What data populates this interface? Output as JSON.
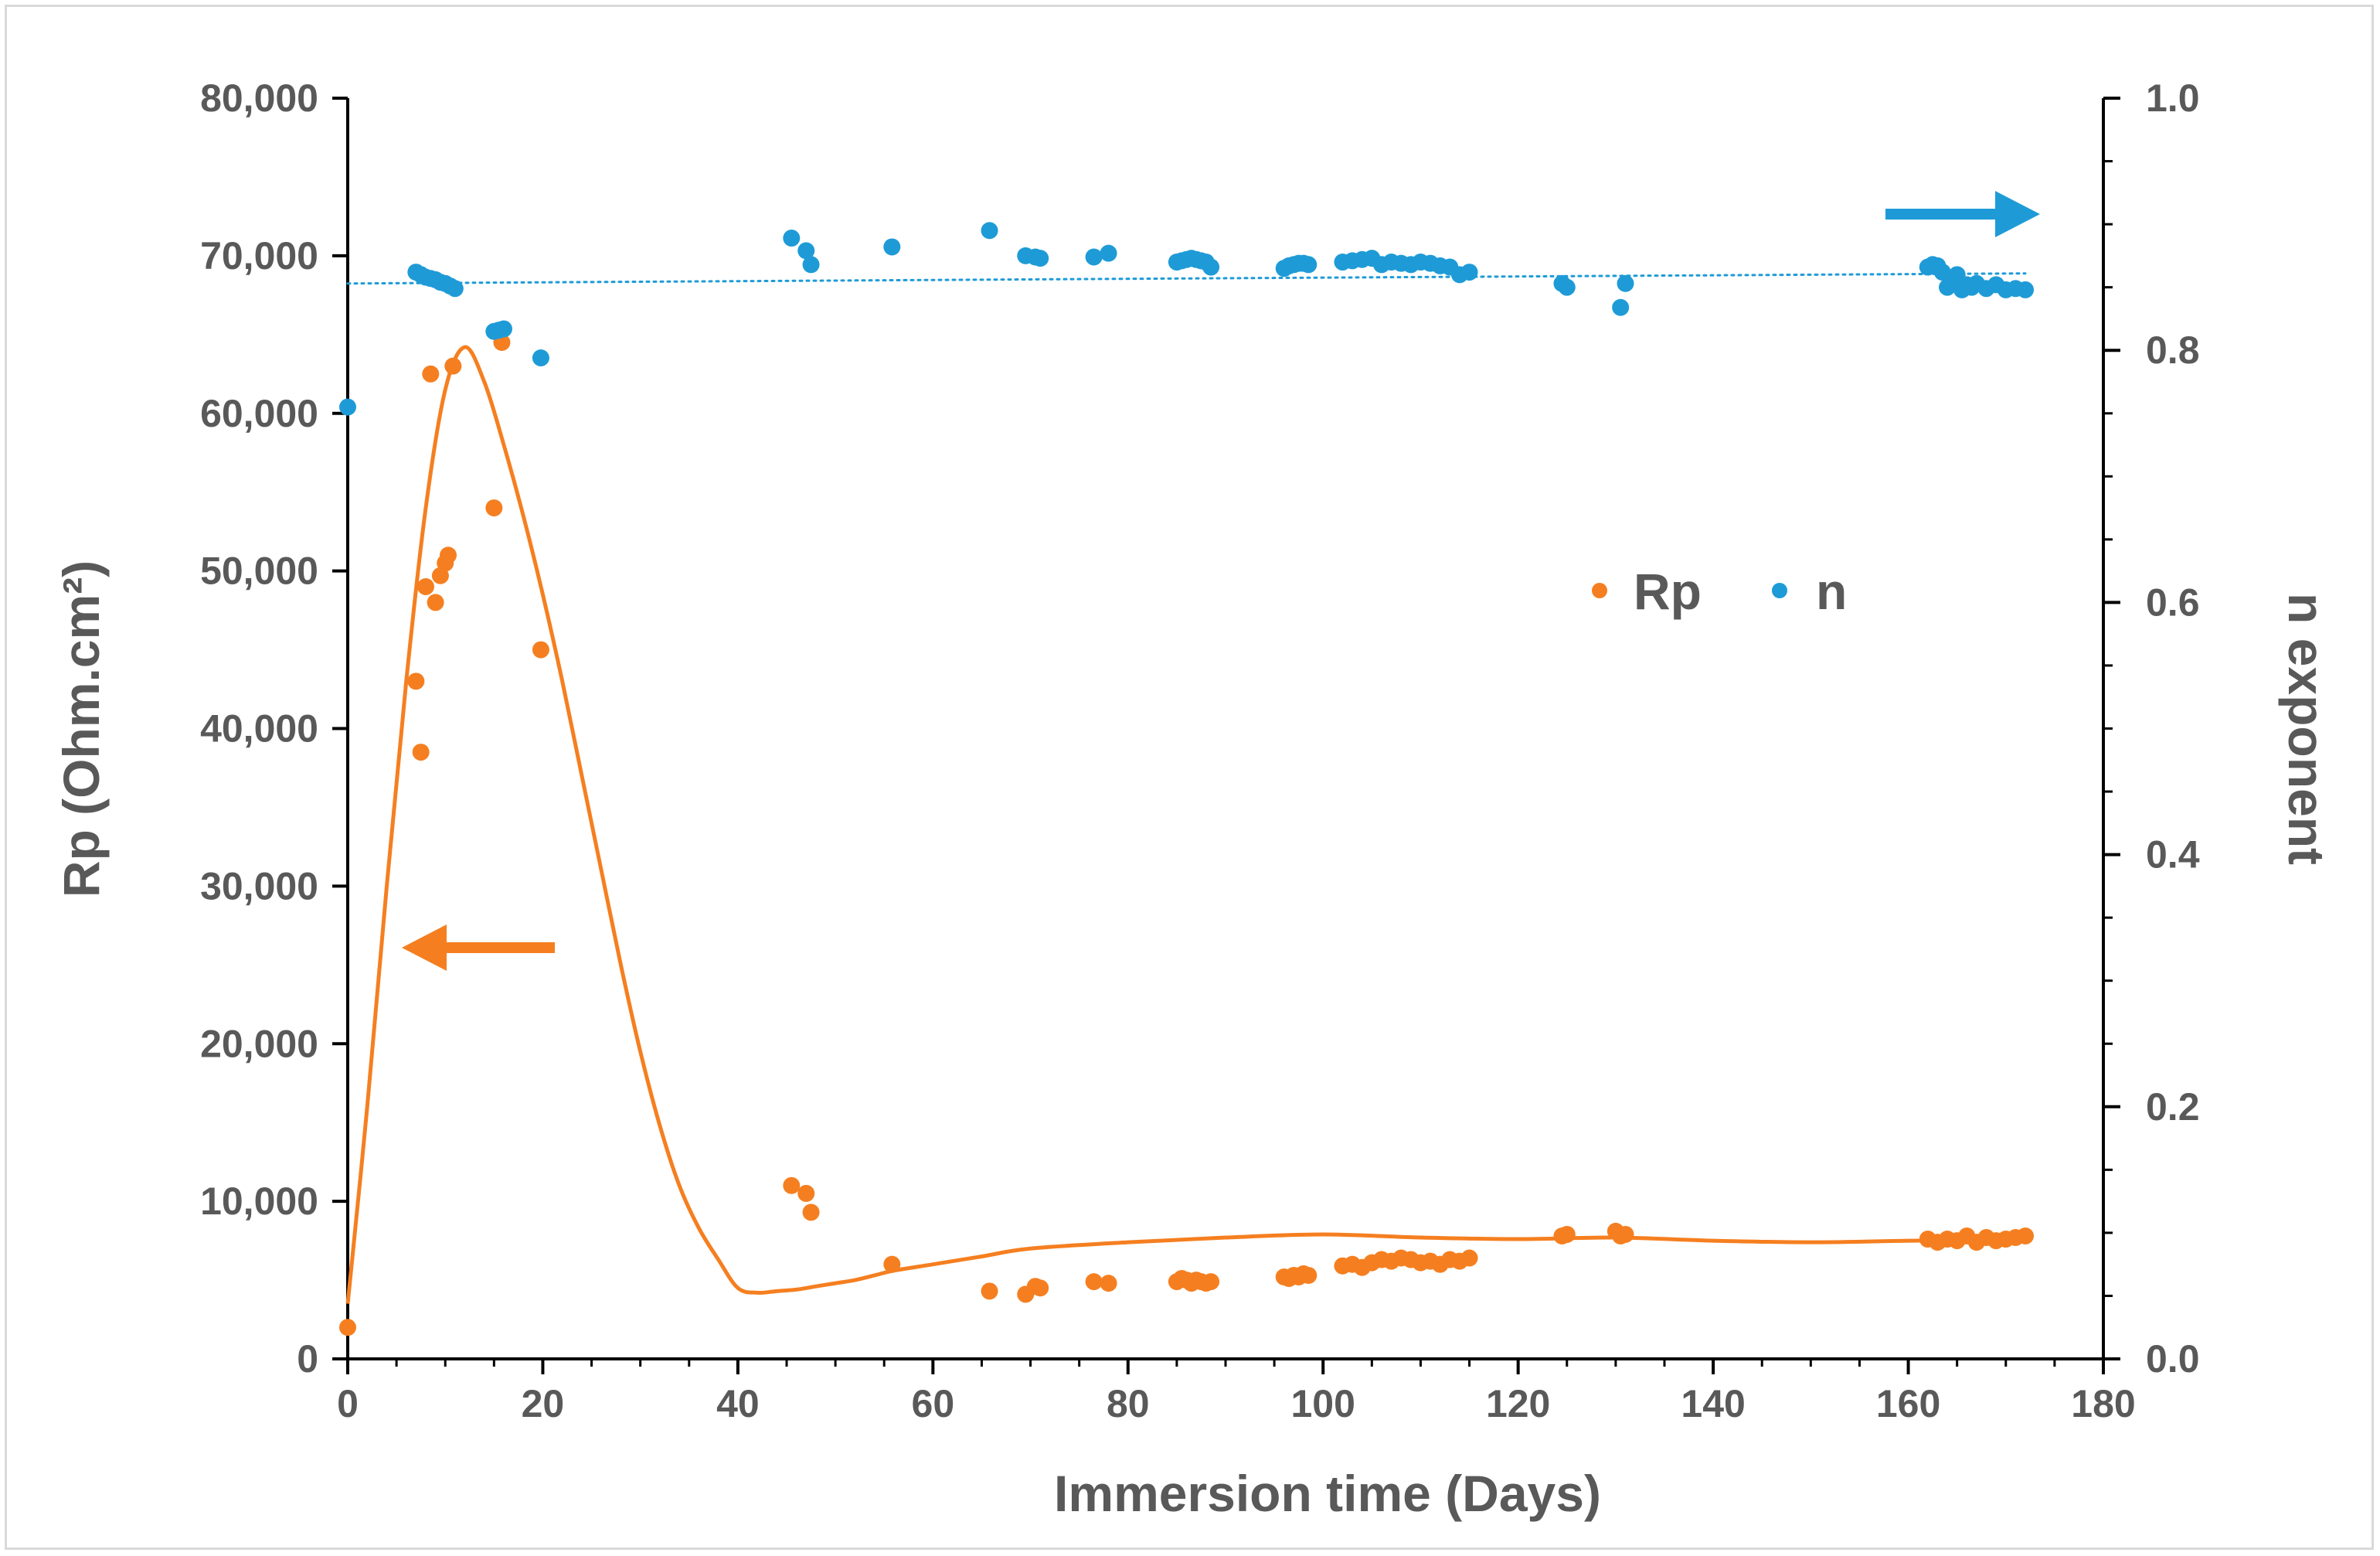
{
  "chart_data": {
    "type": "scatter",
    "title": "",
    "xlabel": "Immersion time (Days)",
    "ylabel": "Rp (Ohm.cm²)",
    "y2label": "n exponent",
    "xlim": [
      0,
      180
    ],
    "ylim": [
      0,
      80000
    ],
    "y2lim": [
      0,
      1
    ],
    "x_ticks": [
      0,
      20,
      40,
      60,
      80,
      100,
      120,
      140,
      160,
      180
    ],
    "x_tick_labels": [
      "0",
      "20",
      "40",
      "60",
      "80",
      "100",
      "120",
      "140",
      "160",
      "180"
    ],
    "y_ticks": [
      0,
      10000,
      20000,
      30000,
      40000,
      50000,
      60000,
      70000,
      80000
    ],
    "y_tick_labels": [
      "0",
      "10,000",
      "20,000",
      "30,000",
      "40,000",
      "50,000",
      "60,000",
      "70,000",
      "80,000"
    ],
    "y2_ticks": [
      0,
      0.2,
      0.4,
      0.6,
      0.8,
      1.0
    ],
    "y2_tick_labels": [
      "0.0",
      "0.2",
      "0.4",
      "0.6",
      "0.8",
      "1.0"
    ],
    "grid": false,
    "legend": {
      "position": "center-right",
      "entries": [
        "Rp",
        "n"
      ]
    },
    "colors": {
      "Rp": "#f57f20",
      "n": "#1e9bd7",
      "axis": "#000000",
      "text": "#595959",
      "frame": "#d9d9d9"
    },
    "series": [
      {
        "name": "Rp",
        "axis": "left",
        "x": [
          0,
          7,
          7.5,
          8,
          8.5,
          9,
          9.5,
          10,
          10.3,
          10.8,
          15,
          15.8,
          19.8,
          45.5,
          47,
          47.5,
          55.8,
          65.8,
          69.5,
          70.5,
          71,
          76.5,
          78,
          85,
          85.5,
          86,
          86.5,
          87,
          87.5,
          88,
          88.5,
          96,
          96.5,
          97,
          97.5,
          98,
          98.5,
          102,
          103,
          104,
          105,
          106,
          107,
          108,
          109,
          110,
          111,
          112,
          113,
          114,
          115,
          124.5,
          125,
          130,
          130.5,
          131,
          162,
          163,
          164,
          165,
          166,
          167,
          168,
          169,
          170,
          171,
          172
        ],
        "y": [
          2000,
          43000,
          38500,
          49000,
          62500,
          48000,
          49700,
          50500,
          51000,
          63000,
          54000,
          64500,
          45000,
          11000,
          10500,
          9300,
          6000,
          4300,
          4100,
          4600,
          4500,
          4900,
          4800,
          4900,
          5100,
          5000,
          4800,
          5000,
          4900,
          4800,
          4900,
          5200,
          5100,
          5300,
          5200,
          5400,
          5300,
          5900,
          6000,
          5800,
          6100,
          6300,
          6200,
          6400,
          6300,
          6100,
          6200,
          6000,
          6300,
          6200,
          6400,
          7800,
          7900,
          8100,
          7800,
          7900,
          7600,
          7400,
          7600,
          7500,
          7800,
          7400,
          7700,
          7500,
          7600,
          7700,
          7800
        ]
      },
      {
        "name": "n",
        "axis": "right",
        "x": [
          0,
          7,
          7.5,
          8,
          8.5,
          9,
          9.5,
          10,
          10.5,
          11,
          15,
          15.5,
          16,
          19.8,
          45.5,
          47,
          47.5,
          55.8,
          65.8,
          69.5,
          70.5,
          71,
          76.5,
          78,
          85,
          85.5,
          86,
          86.5,
          87,
          87.5,
          88,
          88.5,
          96,
          96.5,
          97,
          97.5,
          98,
          98.5,
          102,
          103,
          104,
          105,
          106,
          107,
          108,
          109,
          110,
          111,
          112,
          113,
          114,
          115,
          124.5,
          125,
          130.5,
          131,
          162,
          162.5,
          163,
          163.5,
          164,
          164.5,
          165,
          165.5,
          166,
          166.5,
          167,
          168,
          169,
          170,
          171,
          172
        ],
        "y": [
          0.755,
          0.862,
          0.86,
          0.858,
          0.857,
          0.856,
          0.854,
          0.853,
          0.851,
          0.849,
          0.815,
          0.816,
          0.817,
          0.794,
          0.889,
          0.879,
          0.868,
          0.882,
          0.895,
          0.875,
          0.874,
          0.873,
          0.874,
          0.877,
          0.87,
          0.871,
          0.872,
          0.873,
          0.872,
          0.871,
          0.87,
          0.866,
          0.865,
          0.867,
          0.868,
          0.869,
          0.869,
          0.868,
          0.87,
          0.871,
          0.872,
          0.873,
          0.868,
          0.87,
          0.869,
          0.868,
          0.87,
          0.869,
          0.867,
          0.866,
          0.86,
          0.862,
          0.853,
          0.85,
          0.834,
          0.853,
          0.866,
          0.868,
          0.867,
          0.862,
          0.85,
          0.855,
          0.86,
          0.848,
          0.852,
          0.85,
          0.853,
          0.849,
          0.852,
          0.848,
          0.849,
          0.848
        ]
      }
    ],
    "fit_curves": [
      {
        "name": "Rp trend",
        "axis": "left",
        "x": [
          0,
          2,
          4,
          6,
          8,
          10,
          12,
          14,
          16,
          18,
          20,
          22,
          24,
          26,
          28,
          30,
          32,
          34,
          36,
          38,
          40,
          42,
          44,
          46,
          48,
          50,
          52,
          54,
          56,
          60,
          65,
          70,
          80,
          90,
          100,
          110,
          120,
          130,
          140,
          150,
          160,
          162,
          166,
          170,
          172
        ],
        "y": [
          3500,
          16000,
          30000,
          43000,
          54000,
          61500,
          64200,
          62000,
          58000,
          53500,
          48500,
          43000,
          37000,
          31000,
          25000,
          19500,
          14800,
          11000,
          8300,
          6300,
          4500,
          4200,
          4300,
          4400,
          4600,
          4800,
          5000,
          5300,
          5600,
          6000,
          6500,
          7000,
          7400,
          7700,
          7900,
          7700,
          7600,
          7700,
          7500,
          7400,
          7500,
          7500,
          7500,
          7600,
          7700
        ]
      },
      {
        "name": "n trend",
        "axis": "right",
        "style": "dotted",
        "x": [
          0,
          172
        ],
        "y": [
          0.853,
          0.861
        ]
      }
    ],
    "annotations": [
      {
        "text": "",
        "description": "orange arrow pointing left to the Rp axis",
        "series": "Rp",
        "direction": "left"
      },
      {
        "text": "",
        "description": "blue arrow pointing right to the n exponent axis",
        "series": "n",
        "direction": "right"
      }
    ]
  }
}
